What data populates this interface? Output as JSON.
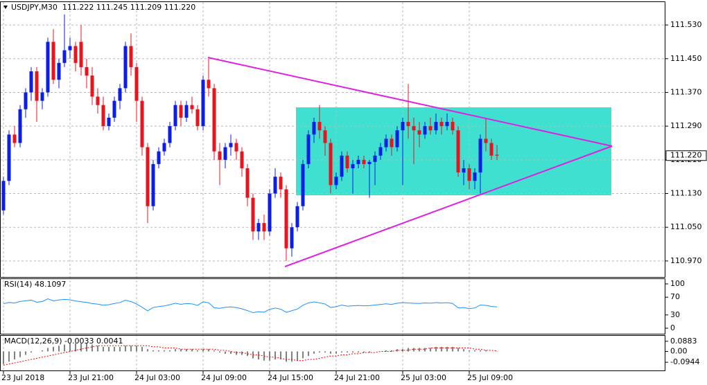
{
  "chart_data": [
    {
      "type": "candlestick",
      "title": "USDJPY,M30  111.222 111.245 111.209 111.220",
      "categories": [
        "23 Jul 2018",
        null,
        null,
        null,
        null,
        null,
        null,
        null,
        null,
        null,
        null,
        null,
        "23 Jul 21:00",
        null,
        null,
        null,
        null,
        null,
        null,
        null,
        null,
        null,
        null,
        null,
        "24 Jul 03:00",
        null,
        null,
        null,
        null,
        null,
        null,
        null,
        null,
        null,
        null,
        null,
        "24 Jul 09:00",
        null,
        null,
        null,
        null,
        null,
        null,
        null,
        null,
        null,
        null,
        null,
        "24 Jul 15:00",
        null,
        null,
        null,
        null,
        null,
        null,
        null,
        null,
        null,
        null,
        null,
        "24 Jul 21:00",
        null,
        null,
        null,
        null,
        null,
        null,
        null,
        null,
        null,
        null,
        null,
        "25 Jul 03:00",
        null,
        null,
        null,
        null,
        null,
        null,
        null,
        null,
        null,
        null,
        null,
        "25 Jul 09:00",
        null,
        null,
        null,
        null,
        null
      ],
      "open": [
        111.09,
        111.16,
        111.27,
        111.25,
        111.33,
        111.37,
        111.42,
        111.35,
        111.37,
        111.49,
        111.4,
        111.44,
        111.47,
        111.48,
        111.49,
        111.43,
        111.41,
        111.36,
        111.34,
        111.29,
        111.31,
        111.35,
        111.38,
        111.48,
        111.43,
        111.35,
        111.24,
        111.1,
        111.2,
        111.23,
        111.25,
        111.29,
        111.34,
        111.31,
        111.34,
        111.33,
        111.29,
        111.4,
        111.38,
        111.23,
        111.21,
        111.24,
        111.25,
        111.23,
        111.19,
        111.12,
        111.04,
        111.06,
        111.04,
        111.13,
        111.17,
        111.14,
        111.0,
        111.05,
        111.1,
        111.2,
        111.27,
        111.3,
        111.28,
        111.25,
        111.15,
        111.17,
        111.22,
        111.19,
        111.2,
        111.21,
        111.2,
        111.205,
        111.22,
        111.24,
        111.26,
        111.24,
        111.28,
        111.3,
        111.29,
        111.28,
        111.27,
        111.29,
        111.28,
        111.3,
        111.29,
        111.3,
        111.28,
        111.18,
        111.19,
        111.16,
        111.18,
        111.26,
        111.25,
        111.222
      ],
      "high": [
        111.17,
        111.28,
        111.29,
        111.34,
        111.38,
        111.43,
        111.43,
        111.38,
        111.5,
        111.52,
        111.45,
        111.555,
        111.5,
        111.49,
        111.53,
        111.45,
        111.43,
        111.38,
        111.36,
        111.32,
        111.36,
        111.39,
        111.49,
        111.51,
        111.44,
        111.36,
        111.25,
        111.21,
        111.24,
        111.26,
        111.3,
        111.35,
        111.35,
        111.35,
        111.36,
        111.34,
        111.41,
        111.45,
        111.39,
        111.25,
        111.25,
        111.27,
        111.26,
        111.24,
        111.2,
        111.13,
        111.07,
        111.08,
        111.14,
        111.19,
        111.18,
        111.15,
        111.06,
        111.11,
        111.21,
        111.28,
        111.31,
        111.34,
        111.29,
        111.26,
        111.18,
        111.23,
        111.23,
        111.21,
        111.22,
        111.22,
        111.21,
        111.23,
        111.25,
        111.27,
        111.27,
        111.29,
        111.31,
        111.39,
        111.31,
        111.3,
        111.3,
        111.31,
        111.32,
        111.31,
        111.32,
        111.31,
        111.29,
        111.21,
        111.2,
        111.19,
        111.27,
        111.31,
        111.26,
        111.245
      ],
      "low": [
        111.08,
        111.15,
        111.24,
        111.24,
        111.31,
        111.35,
        111.3,
        111.33,
        111.36,
        111.39,
        111.38,
        111.43,
        111.45,
        111.42,
        111.41,
        111.38,
        111.34,
        111.32,
        111.28,
        111.28,
        111.3,
        111.33,
        111.37,
        111.41,
        111.3,
        111.22,
        111.06,
        111.09,
        111.19,
        111.22,
        111.24,
        111.28,
        111.29,
        111.3,
        111.32,
        111.28,
        111.28,
        111.36,
        111.21,
        111.15,
        111.19,
        111.22,
        111.21,
        111.17,
        111.1,
        111.02,
        111.02,
        111.02,
        111.03,
        111.12,
        111.12,
        110.97,
        110.98,
        111.04,
        111.09,
        111.19,
        111.25,
        111.26,
        111.22,
        111.13,
        111.14,
        111.16,
        111.18,
        111.13,
        111.19,
        111.19,
        111.12,
        111.15,
        111.21,
        111.23,
        111.22,
        111.23,
        111.15,
        111.26,
        111.2,
        111.24,
        111.26,
        111.27,
        111.27,
        111.27,
        111.28,
        111.27,
        111.17,
        111.15,
        111.14,
        111.14,
        111.13,
        111.23,
        111.21,
        111.209
      ],
      "close": [
        111.16,
        111.27,
        111.25,
        111.33,
        111.37,
        111.42,
        111.35,
        111.37,
        111.49,
        111.4,
        111.44,
        111.47,
        111.48,
        111.44,
        111.43,
        111.41,
        111.36,
        111.34,
        111.29,
        111.31,
        111.35,
        111.38,
        111.48,
        111.43,
        111.35,
        111.24,
        111.1,
        111.2,
        111.23,
        111.25,
        111.29,
        111.34,
        111.31,
        111.34,
        111.33,
        111.29,
        111.4,
        111.38,
        111.23,
        111.21,
        111.24,
        111.25,
        111.23,
        111.19,
        111.12,
        111.04,
        111.06,
        111.04,
        111.13,
        111.17,
        111.14,
        111.0,
        111.05,
        111.1,
        111.2,
        111.27,
        111.3,
        111.28,
        111.25,
        111.15,
        111.17,
        111.22,
        111.19,
        111.2,
        111.21,
        111.2,
        111.205,
        111.22,
        111.24,
        111.26,
        111.24,
        111.28,
        111.3,
        111.29,
        111.28,
        111.27,
        111.29,
        111.28,
        111.3,
        111.29,
        111.3,
        111.28,
        111.18,
        111.19,
        111.16,
        111.18,
        111.26,
        111.25,
        111.22,
        111.22
      ],
      "up_color": "#0a1ee6",
      "down_color": "#e8141e",
      "ylim": [
        110.932,
        111.586
      ],
      "yticks": [
        {
          "value": 111.53,
          "label": "111.530"
        },
        {
          "value": 111.45,
          "label": "111.450"
        },
        {
          "value": 111.37,
          "label": "111.370"
        },
        {
          "value": 111.29,
          "label": "111.290"
        },
        {
          "value": 111.21,
          "label": "111.210"
        },
        {
          "value": 111.13,
          "label": "111.130"
        },
        {
          "value": 111.05,
          "label": "111.050"
        },
        {
          "value": 110.97,
          "label": "110.970"
        }
      ],
      "current_price": {
        "value": 111.22,
        "label": "111.220"
      },
      "grid": true
    },
    {
      "type": "line",
      "title": "RSI(14) 48.1097",
      "color": "#1e90ff",
      "values": [
        55.2,
        58.1,
        56.9,
        60.3,
        62.0,
        63.5,
        58.7,
        60.2,
        66.4,
        61.8,
        63.9,
        65.1,
        64.0,
        61.5,
        59.8,
        58.2,
        55.6,
        54.3,
        51.9,
        53.1,
        55.8,
        57.9,
        63.2,
        60.1,
        54.8,
        47.3,
        39.2,
        46.8,
        48.9,
        50.3,
        53.1,
        56.4,
        53.9,
        55.7,
        54.8,
        51.6,
        59.6,
        57.5,
        46.2,
        44.9,
        47.3,
        48.2,
        46.5,
        43.8,
        39.7,
        35.1,
        37.3,
        36.2,
        42.6,
        45.4,
        43.1,
        35.8,
        39.5,
        43.2,
        51.8,
        57.1,
        59.4,
        57.2,
        54.6,
        47.0,
        48.6,
        52.3,
        49.8,
        50.6,
        51.3,
        50.5,
        50.9,
        52.4,
        53.8,
        55.1,
        53.7,
        56.5,
        57.9,
        57.0,
        56.3,
        55.8,
        57.1,
        56.4,
        57.8,
        57.0,
        57.6,
        55.9,
        45.9,
        46.7,
        44.1,
        45.8,
        52.4,
        51.6,
        49.2,
        48.1097
      ],
      "ylim": [
        -12.5,
        112.5
      ],
      "yticks": [
        100,
        70,
        30,
        0
      ],
      "grid": false
    },
    {
      "type": "combo",
      "title": "MACD(12,26,9) -0.0033 0.0041",
      "series": [
        {
          "kind": "bar",
          "color": "#000000",
          "values": [
            -0.11,
            -0.09,
            -0.07,
            -0.05,
            -0.03,
            -0.01,
            0.0,
            0.01,
            0.03,
            0.04,
            0.05,
            0.06,
            0.07,
            0.07,
            0.07,
            0.07,
            0.06,
            0.05,
            0.04,
            0.04,
            0.04,
            0.04,
            0.05,
            0.05,
            0.05,
            0.04,
            0.02,
            0.01,
            0.01,
            0.01,
            0.01,
            0.02,
            0.02,
            0.02,
            0.02,
            0.01,
            0.02,
            0.02,
            0.01,
            -0.01,
            -0.02,
            -0.02,
            -0.03,
            -0.03,
            -0.04,
            -0.06,
            -0.07,
            -0.08,
            -0.08,
            -0.07,
            -0.07,
            -0.09,
            -0.09,
            -0.08,
            -0.06,
            -0.04,
            -0.02,
            -0.01,
            -0.01,
            -0.02,
            -0.02,
            -0.01,
            -0.01,
            -0.01,
            -0.01,
            -0.01,
            -0.01,
            0.0,
            0.0,
            0.01,
            0.01,
            0.02,
            0.02,
            0.03,
            0.03,
            0.03,
            0.03,
            0.03,
            0.04,
            0.04,
            0.04,
            0.04,
            0.03,
            0.02,
            0.01,
            0.01,
            0.01,
            0.01,
            0.0,
            -0.0033
          ]
        },
        {
          "kind": "line",
          "color": "#ff0000",
          "values": [
            -0.12,
            -0.11,
            -0.1,
            -0.09,
            -0.08,
            -0.07,
            -0.06,
            -0.05,
            -0.04,
            -0.03,
            -0.02,
            -0.01,
            0.0,
            0.01,
            0.02,
            0.03,
            0.04,
            0.05,
            0.05,
            0.05,
            0.05,
            0.05,
            0.05,
            0.05,
            0.05,
            0.05,
            0.05,
            0.04,
            0.04,
            0.03,
            0.03,
            0.03,
            0.02,
            0.02,
            0.02,
            0.02,
            0.02,
            0.02,
            0.02,
            0.01,
            0.01,
            0.0,
            -0.01,
            -0.01,
            -0.02,
            -0.03,
            -0.03,
            -0.04,
            -0.05,
            -0.05,
            -0.06,
            -0.07,
            -0.07,
            -0.08,
            -0.08,
            -0.07,
            -0.07,
            -0.06,
            -0.05,
            -0.04,
            -0.04,
            -0.03,
            -0.03,
            -0.02,
            -0.02,
            -0.01,
            -0.01,
            -0.01,
            0.0,
            0.0,
            0.0,
            0.01,
            0.01,
            0.01,
            0.02,
            0.02,
            0.02,
            0.03,
            0.03,
            0.03,
            0.03,
            0.03,
            0.03,
            0.03,
            0.03,
            0.02,
            0.02,
            0.01,
            0.01,
            0.0041
          ]
        }
      ],
      "ylim": [
        -0.166,
        0.142
      ],
      "yticks": [
        0.0883,
        {
          "value": 0,
          "label": "0.00"
        },
        -0.0944
      ],
      "grid": false
    }
  ]
}
